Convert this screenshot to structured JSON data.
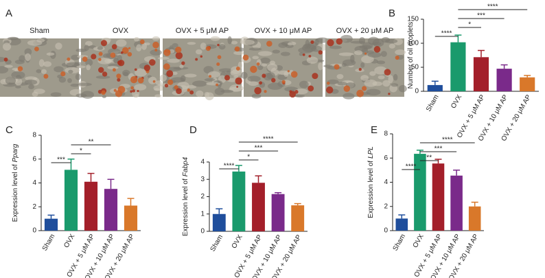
{
  "figure_panel": {
    "label": "A",
    "captions": [
      "Sham",
      "OVX",
      "OVX + 5 μM AP",
      "OVX + 10 μM AP",
      "OVX + 20 μM AP"
    ]
  },
  "chart_data": [
    {
      "type": "bar",
      "panel": "B",
      "y_label": "Number of oil droplets",
      "categories": [
        "Sham",
        "OVX",
        "OVX + 5 μM AP",
        "OVX + 10 μM AP",
        "OVX + 20 μM AP"
      ],
      "values": [
        13,
        102,
        71,
        47,
        29
      ],
      "errors": [
        8,
        15,
        14,
        8,
        4
      ],
      "colors": [
        "#1f4e9c",
        "#1a9a6c",
        "#a31f2a",
        "#7a2a8a",
        "#d9782a"
      ],
      "ylim": [
        0,
        150
      ],
      "yticks": [
        0,
        50,
        100,
        150
      ],
      "significance": [
        {
          "from": "Sham",
          "to": "OVX",
          "label": "****"
        },
        {
          "from": "OVX",
          "to": "OVX + 5 μM AP",
          "label": "*"
        },
        {
          "from": "OVX",
          "to": "OVX + 10 μM AP",
          "label": "***"
        },
        {
          "from": "OVX",
          "to": "OVX + 20 μM AP",
          "label": "****"
        }
      ]
    },
    {
      "type": "bar",
      "panel": "C",
      "y_label": "Expression level of",
      "y_label_gene": "Pparg",
      "categories": [
        "Sham",
        "OVX",
        "OVX + 5 μM AP",
        "OVX + 10 μM AP",
        "OVX + 20 μM AP"
      ],
      "values": [
        1.0,
        5.1,
        4.1,
        3.5,
        2.1
      ],
      "errors": [
        0.3,
        0.9,
        0.7,
        0.8,
        0.6
      ],
      "colors": [
        "#1f4e9c",
        "#1a9a6c",
        "#a31f2a",
        "#7a2a8a",
        "#d9782a"
      ],
      "ylim": [
        0,
        8
      ],
      "yticks": [
        0,
        2,
        4,
        6,
        8
      ],
      "significance": [
        {
          "from": "Sham",
          "to": "OVX",
          "label": "***"
        },
        {
          "from": "OVX",
          "to": "OVX + 5 μM AP",
          "label": "*"
        },
        {
          "from": "OVX",
          "to": "OVX + 10 μM AP",
          "label": "**"
        }
      ]
    },
    {
      "type": "bar",
      "panel": "D",
      "y_label": "Expression level of",
      "y_label_gene": "Fabp4",
      "categories": [
        "Sham",
        "OVX",
        "OVX + 5 μM AP",
        "OVX + 10 μM AP",
        "OVX + 20 μM AP"
      ],
      "values": [
        1.0,
        3.45,
        2.8,
        2.15,
        1.5
      ],
      "errors": [
        0.3,
        0.35,
        0.4,
        0.08,
        0.1
      ],
      "colors": [
        "#1f4e9c",
        "#1a9a6c",
        "#a31f2a",
        "#7a2a8a",
        "#d9782a"
      ],
      "ylim": [
        0,
        4
      ],
      "yticks": [
        0,
        1,
        2,
        3,
        4
      ],
      "significance": [
        {
          "from": "Sham",
          "to": "OVX",
          "label": "****"
        },
        {
          "from": "OVX",
          "to": "OVX + 5 μM AP",
          "label": "*"
        },
        {
          "from": "OVX",
          "to": "OVX + 10 μM AP",
          "label": "***"
        },
        {
          "from": "OVX",
          "to": "OVX + 20 μM AP",
          "label": "****"
        }
      ]
    },
    {
      "type": "bar",
      "panel": "E",
      "y_label": "Expression level of",
      "y_label_gene": "LPL",
      "categories": [
        "Sham",
        "OVX",
        "OVX + 5 μM AP",
        "OVX + 10 μM AP",
        "OVX + 20 μM AP"
      ],
      "values": [
        1.0,
        6.35,
        5.55,
        4.55,
        2.0
      ],
      "errors": [
        0.3,
        0.3,
        0.35,
        0.45,
        0.35
      ],
      "colors": [
        "#1f4e9c",
        "#1a9a6c",
        "#a31f2a",
        "#7a2a8a",
        "#d9782a"
      ],
      "ylim": [
        0,
        8
      ],
      "yticks": [
        0,
        2,
        4,
        6,
        8
      ],
      "significance": [
        {
          "from": "Sham",
          "to": "OVX",
          "label": "****"
        },
        {
          "from": "OVX",
          "to": "OVX + 5 μM AP",
          "label": "**"
        },
        {
          "from": "OVX",
          "to": "OVX + 10 μM AP",
          "label": "***"
        },
        {
          "from": "OVX",
          "to": "OVX + 20 μM AP",
          "label": "****"
        }
      ]
    }
  ]
}
